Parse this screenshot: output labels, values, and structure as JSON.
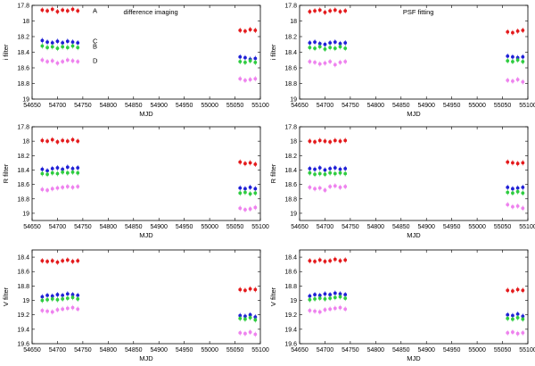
{
  "chart_data": [
    {
      "type": "scatter",
      "title": "difference imaging",
      "xlabel": "MJD",
      "ylabel": "i filter",
      "xlim": [
        54650,
        55100
      ],
      "ylim": [
        19,
        17.8
      ],
      "y_inverted": true,
      "xticks": [
        "54650",
        "54700",
        "54750",
        "54800",
        "54850",
        "54900",
        "54950",
        "55000",
        "55050",
        "55100"
      ],
      "yticks": [
        "17.8",
        "18",
        "18.2",
        "18.4",
        "18.6",
        "18.8",
        "19"
      ],
      "series": [
        {
          "name": "A",
          "color": "#e41a1c",
          "x": [
            54670,
            54680,
            54690,
            54700,
            54710,
            54720,
            54730,
            54740,
            55060,
            55070,
            55080,
            55090
          ],
          "y": [
            17.86,
            17.87,
            17.85,
            17.88,
            17.86,
            17.87,
            17.85,
            17.87,
            18.12,
            18.13,
            18.11,
            18.12
          ]
        },
        {
          "name": "C",
          "color": "#1f1fd6",
          "x": [
            54670,
            54680,
            54690,
            54700,
            54710,
            54720,
            54730,
            54740,
            55060,
            55070,
            55080,
            55090
          ],
          "y": [
            18.25,
            18.27,
            18.28,
            18.26,
            18.28,
            18.26,
            18.27,
            18.28,
            18.46,
            18.47,
            18.49,
            18.48
          ]
        },
        {
          "name": "B",
          "color": "#2ecc40",
          "x": [
            54670,
            54680,
            54690,
            54700,
            54710,
            54720,
            54730,
            54740,
            55060,
            55070,
            55080,
            55090
          ],
          "y": [
            18.32,
            18.34,
            18.33,
            18.35,
            18.33,
            18.34,
            18.32,
            18.34,
            18.52,
            18.53,
            18.51,
            18.53
          ]
        },
        {
          "name": "D",
          "color": "#ee82ee",
          "x": [
            54670,
            54680,
            54690,
            54700,
            54710,
            54720,
            54730,
            54740,
            55060,
            55070,
            55080,
            55090
          ],
          "y": [
            18.5,
            18.52,
            18.51,
            18.54,
            18.52,
            18.5,
            18.51,
            18.52,
            18.74,
            18.76,
            18.75,
            18.74
          ]
        }
      ]
    },
    {
      "type": "scatter",
      "title": "PSF fitting",
      "xlabel": "MJD",
      "ylabel": "i filter",
      "xlim": [
        54650,
        55100
      ],
      "ylim": [
        19,
        17.8
      ],
      "y_inverted": true,
      "xticks": [
        "54650",
        "54700",
        "54750",
        "54800",
        "54850",
        "54900",
        "54950",
        "55000",
        "55050",
        "55100"
      ],
      "yticks": [
        "17.8",
        "18",
        "18.2",
        "18.4",
        "18.6",
        "18.8",
        "19"
      ],
      "series": [
        {
          "name": "A",
          "color": "#e41a1c",
          "x": [
            54670,
            54680,
            54690,
            54700,
            54710,
            54720,
            54730,
            54740,
            55060,
            55070,
            55080,
            55090
          ],
          "y": [
            17.88,
            17.87,
            17.86,
            17.89,
            17.87,
            17.86,
            17.88,
            17.87,
            18.14,
            18.15,
            18.13,
            18.12
          ]
        },
        {
          "name": "C",
          "color": "#1f1fd6",
          "x": [
            54670,
            54680,
            54690,
            54700,
            54710,
            54720,
            54730,
            54740,
            55060,
            55070,
            55080,
            55090
          ],
          "y": [
            18.28,
            18.27,
            18.29,
            18.3,
            18.28,
            18.27,
            18.29,
            18.28,
            18.45,
            18.46,
            18.47,
            18.46
          ]
        },
        {
          "name": "B",
          "color": "#2ecc40",
          "x": [
            54670,
            54680,
            54690,
            54700,
            54710,
            54720,
            54730,
            54740,
            55060,
            55070,
            55080,
            55090
          ],
          "y": [
            18.34,
            18.35,
            18.33,
            18.36,
            18.34,
            18.35,
            18.33,
            18.35,
            18.51,
            18.52,
            18.5,
            18.52
          ]
        },
        {
          "name": "D",
          "color": "#ee82ee",
          "x": [
            54670,
            54680,
            54690,
            54700,
            54710,
            54720,
            54730,
            54740,
            55060,
            55070,
            55080,
            55090
          ],
          "y": [
            18.52,
            18.53,
            18.55,
            18.54,
            18.52,
            18.56,
            18.53,
            18.52,
            18.76,
            18.77,
            18.75,
            18.78
          ]
        }
      ]
    },
    {
      "type": "scatter",
      "title": "",
      "xlabel": "MJD",
      "ylabel": "R filter",
      "xlim": [
        54650,
        55100
      ],
      "ylim": [
        19.1,
        17.8
      ],
      "y_inverted": true,
      "xticks": [
        "54650",
        "54700",
        "54750",
        "54800",
        "54850",
        "54900",
        "54950",
        "55000",
        "55050",
        "55100"
      ],
      "yticks": [
        "17.8",
        "18",
        "18.2",
        "18.4",
        "18.6",
        "18.8",
        "19"
      ],
      "series": [
        {
          "color": "#e41a1c",
          "x": [
            54670,
            54680,
            54690,
            54700,
            54710,
            54720,
            54730,
            54740,
            55060,
            55070,
            55080,
            55090
          ],
          "y": [
            17.99,
            18.0,
            17.98,
            18.01,
            17.99,
            18.0,
            17.98,
            18.0,
            18.29,
            18.31,
            18.3,
            18.32
          ]
        },
        {
          "color": "#1f1fd6",
          "x": [
            54670,
            54680,
            54690,
            54700,
            54710,
            54720,
            54730,
            54740,
            55060,
            55070,
            55080,
            55090
          ],
          "y": [
            18.39,
            18.41,
            18.38,
            18.37,
            18.39,
            18.36,
            18.38,
            18.37,
            18.65,
            18.66,
            18.64,
            18.66
          ]
        },
        {
          "color": "#2ecc40",
          "x": [
            54670,
            54680,
            54690,
            54700,
            54710,
            54720,
            54730,
            54740,
            55060,
            55070,
            55080,
            55090
          ],
          "y": [
            18.45,
            18.46,
            18.44,
            18.45,
            18.43,
            18.44,
            18.43,
            18.44,
            18.72,
            18.71,
            18.73,
            18.72
          ]
        },
        {
          "color": "#ee82ee",
          "x": [
            54670,
            54680,
            54690,
            54700,
            54710,
            54720,
            54730,
            54740,
            55060,
            55070,
            55080,
            55090
          ],
          "y": [
            18.67,
            18.68,
            18.66,
            18.65,
            18.64,
            18.63,
            18.64,
            18.63,
            18.93,
            18.95,
            18.94,
            18.92
          ]
        }
      ]
    },
    {
      "type": "scatter",
      "title": "",
      "xlabel": "MJD",
      "ylabel": "R filter",
      "xlim": [
        54650,
        55100
      ],
      "ylim": [
        19.1,
        17.8
      ],
      "y_inverted": true,
      "xticks": [
        "54650",
        "54700",
        "54750",
        "54800",
        "54850",
        "54900",
        "54950",
        "55000",
        "55050",
        "55100"
      ],
      "yticks": [
        "17.8",
        "18",
        "18.2",
        "18.4",
        "18.6",
        "18.8",
        "19"
      ],
      "series": [
        {
          "color": "#e41a1c",
          "x": [
            54670,
            54680,
            54690,
            54700,
            54710,
            54720,
            54730,
            54740,
            55060,
            55070,
            55080,
            55090
          ],
          "y": [
            18.0,
            18.01,
            17.99,
            18.0,
            18.01,
            17.99,
            18.0,
            17.99,
            18.29,
            18.3,
            18.31,
            18.3
          ]
        },
        {
          "color": "#1f1fd6",
          "x": [
            54670,
            54680,
            54690,
            54700,
            54710,
            54720,
            54730,
            54740,
            55060,
            55070,
            55080,
            55090
          ],
          "y": [
            18.38,
            18.39,
            18.37,
            18.4,
            18.38,
            18.37,
            18.39,
            18.38,
            18.64,
            18.66,
            18.65,
            18.64
          ]
        },
        {
          "color": "#2ecc40",
          "x": [
            54670,
            54680,
            54690,
            54700,
            54710,
            54720,
            54730,
            54740,
            55060,
            55070,
            55080,
            55090
          ],
          "y": [
            18.44,
            18.46,
            18.45,
            18.46,
            18.44,
            18.45,
            18.44,
            18.45,
            18.71,
            18.72,
            18.7,
            18.72
          ]
        },
        {
          "color": "#ee82ee",
          "x": [
            54670,
            54680,
            54690,
            54700,
            54710,
            54720,
            54730,
            54740,
            55060,
            55070,
            55080,
            55090
          ],
          "y": [
            18.64,
            18.66,
            18.65,
            18.68,
            18.63,
            18.62,
            18.64,
            18.63,
            18.88,
            18.91,
            18.9,
            18.93
          ]
        }
      ]
    },
    {
      "type": "scatter",
      "title": "",
      "xlabel": "MJD",
      "ylabel": "V filter",
      "xlim": [
        54650,
        55100
      ],
      "ylim": [
        19.6,
        18.3
      ],
      "y_inverted": true,
      "xticks": [
        "54650",
        "54700",
        "54750",
        "54800",
        "54850",
        "54900",
        "54950",
        "55000",
        "55050",
        "55100"
      ],
      "yticks": [
        "18.4",
        "18.6",
        "18.8",
        "19",
        "19.2",
        "19.4",
        "19.6"
      ],
      "series": [
        {
          "color": "#e41a1c",
          "x": [
            54670,
            54680,
            54690,
            54700,
            54710,
            54720,
            54730,
            54740,
            55060,
            55070,
            55080,
            55090
          ],
          "y": [
            18.45,
            18.46,
            18.45,
            18.47,
            18.45,
            18.44,
            18.46,
            18.45,
            18.85,
            18.86,
            18.84,
            18.85
          ]
        },
        {
          "color": "#1f1fd6",
          "x": [
            54670,
            54680,
            54690,
            54700,
            54710,
            54720,
            54730,
            54740,
            55060,
            55070,
            55080,
            55090
          ],
          "y": [
            18.95,
            18.93,
            18.94,
            18.92,
            18.93,
            18.91,
            18.92,
            18.93,
            19.21,
            19.22,
            19.2,
            19.23
          ]
        },
        {
          "color": "#2ecc40",
          "x": [
            54670,
            54680,
            54690,
            54700,
            54710,
            54720,
            54730,
            54740,
            55060,
            55070,
            55080,
            55090
          ],
          "y": [
            19.0,
            18.99,
            18.98,
            18.99,
            18.98,
            18.97,
            18.96,
            18.98,
            19.25,
            19.26,
            19.24,
            19.27
          ]
        },
        {
          "color": "#ee82ee",
          "x": [
            54670,
            54680,
            54690,
            54700,
            54710,
            54720,
            54730,
            54740,
            55060,
            55070,
            55080,
            55090
          ],
          "y": [
            19.14,
            19.15,
            19.16,
            19.13,
            19.12,
            19.11,
            19.1,
            19.12,
            19.45,
            19.46,
            19.44,
            19.47
          ]
        }
      ]
    },
    {
      "type": "scatter",
      "title": "",
      "xlabel": "MJD",
      "ylabel": "V filter",
      "xlim": [
        54650,
        55100
      ],
      "ylim": [
        19.6,
        18.3
      ],
      "y_inverted": true,
      "xticks": [
        "54650",
        "54700",
        "54750",
        "54800",
        "54850",
        "54900",
        "54950",
        "55000",
        "55050",
        "55100"
      ],
      "yticks": [
        "18.4",
        "18.6",
        "18.8",
        "19",
        "19.2",
        "19.4",
        "19.6"
      ],
      "series": [
        {
          "color": "#e41a1c",
          "x": [
            54670,
            54680,
            54690,
            54700,
            54710,
            54720,
            54730,
            54740,
            55060,
            55070,
            55080,
            55090
          ],
          "y": [
            18.45,
            18.46,
            18.44,
            18.46,
            18.45,
            18.43,
            18.45,
            18.44,
            18.86,
            18.87,
            18.85,
            18.86
          ]
        },
        {
          "color": "#1f1fd6",
          "x": [
            54670,
            54680,
            54690,
            54700,
            54710,
            54720,
            54730,
            54740,
            55060,
            55070,
            55080,
            55090
          ],
          "y": [
            18.94,
            18.92,
            18.93,
            18.91,
            18.92,
            18.9,
            18.91,
            18.92,
            19.2,
            19.21,
            19.19,
            19.22
          ]
        },
        {
          "color": "#2ecc40",
          "x": [
            54670,
            54680,
            54690,
            54700,
            54710,
            54720,
            54730,
            54740,
            55060,
            55070,
            55080,
            55090
          ],
          "y": [
            18.99,
            18.98,
            18.97,
            18.98,
            18.97,
            18.96,
            18.95,
            18.97,
            19.25,
            19.26,
            19.24,
            19.26
          ]
        },
        {
          "color": "#ee82ee",
          "x": [
            54670,
            54680,
            54690,
            54700,
            54710,
            54720,
            54730,
            54740,
            55060,
            55070,
            55080,
            55090
          ],
          "y": [
            19.14,
            19.15,
            19.16,
            19.13,
            19.12,
            19.11,
            19.1,
            19.12,
            19.45,
            19.44,
            19.46,
            19.45
          ]
        }
      ]
    }
  ]
}
